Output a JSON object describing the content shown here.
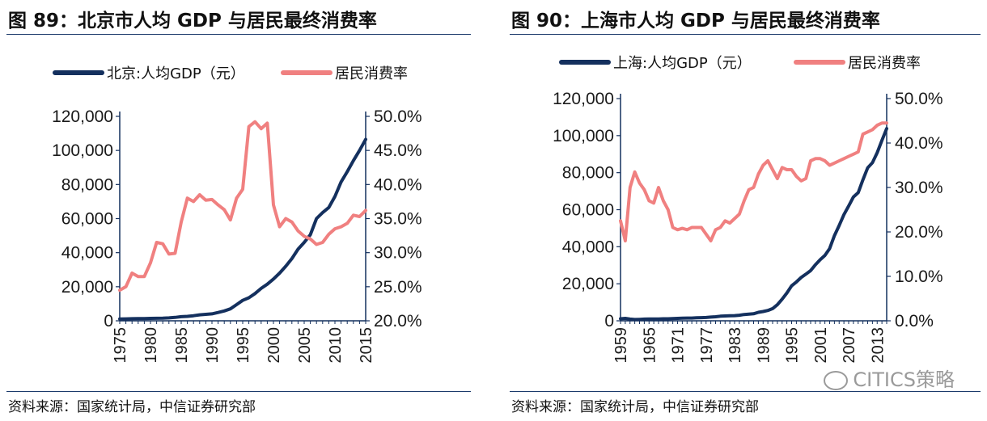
{
  "watermark": {
    "text": "CITICS策略",
    "icon": "wechat-icon"
  },
  "charts": [
    {
      "id": "left",
      "title": "图 89：北京市人均 GDP 与居民最终消费率",
      "source": "资料来源：国家统计局，中信证券研究部",
      "colors": {
        "gdp": "#14305e",
        "rate": "#f08080"
      }
    },
    {
      "id": "right",
      "title": "图 90：上海市人均 GDP 与居民最终消费率",
      "source": "资料来源：国家统计局，中信证券研究部",
      "colors": {
        "gdp": "#14305e",
        "rate": "#f08080"
      }
    }
  ],
  "chart_data": [
    {
      "type": "line",
      "title": "图 89：北京市人均 GDP 与居民最终消费率",
      "legend": [
        "北京:人均GDP（元）",
        "居民消费率"
      ],
      "legend_placement": "top",
      "x": [
        1975,
        1976,
        1977,
        1978,
        1979,
        1980,
        1981,
        1982,
        1983,
        1984,
        1985,
        1986,
        1987,
        1988,
        1989,
        1990,
        1991,
        1992,
        1993,
        1994,
        1995,
        1996,
        1997,
        1998,
        1999,
        2000,
        2001,
        2002,
        2003,
        2004,
        2005,
        2006,
        2007,
        2008,
        2009,
        2010,
        2011,
        2012,
        2013,
        2014,
        2015
      ],
      "x_tick_labels": [
        "1975",
        "1980",
        "1985",
        "1990",
        "1995",
        "2000",
        "2005",
        "2010",
        "2015"
      ],
      "y_left": {
        "ylim": [
          0,
          120000
        ],
        "ticks": [
          "0",
          "20,000",
          "40,000",
          "60,000",
          "80,000",
          "100,000",
          "120,000"
        ]
      },
      "y_right": {
        "ylim": [
          20,
          50
        ],
        "ticks": [
          "20.0%",
          "25.0%",
          "30.0%",
          "35.0%",
          "40.0%",
          "45.0%",
          "50.0%"
        ]
      },
      "grid": false,
      "series": [
        {
          "name": "北京:人均GDP（元）",
          "axis": "left",
          "values": [
            1100,
            1150,
            1250,
            1300,
            1350,
            1400,
            1450,
            1500,
            1700,
            2000,
            2400,
            2600,
            3000,
            3500,
            3800,
            4100,
            4900,
            5800,
            7000,
            9500,
            12000,
            13500,
            16000,
            19000,
            21500,
            24500,
            28000,
            32000,
            36500,
            42000,
            46000,
            50500,
            60000,
            63500,
            66500,
            73000,
            81500,
            87500,
            94000,
            100000,
            106500
          ]
        },
        {
          "name": "居民消费率",
          "axis": "right",
          "values": [
            24.5,
            25.0,
            27.0,
            26.5,
            26.5,
            28.5,
            31.5,
            31.3,
            29.8,
            29.9,
            34.5,
            38.0,
            37.5,
            38.5,
            37.7,
            37.8,
            37.0,
            36.3,
            34.8,
            38.0,
            39.3,
            48.5,
            49.2,
            48.2,
            49.0,
            37.0,
            33.8,
            35.0,
            34.5,
            33.2,
            32.4,
            32.0,
            31.2,
            31.5,
            32.7,
            33.5,
            33.8,
            34.3,
            35.5,
            35.3,
            36.2
          ]
        }
      ]
    },
    {
      "type": "line",
      "title": "图 90：上海市人均 GDP 与居民最终消费率",
      "legend": [
        "上海:人均GDP（元）",
        "居民消费率"
      ],
      "legend_placement": "top",
      "x": [
        1959,
        1960,
        1961,
        1962,
        1963,
        1964,
        1965,
        1966,
        1967,
        1968,
        1969,
        1970,
        1971,
        1972,
        1973,
        1974,
        1975,
        1976,
        1977,
        1978,
        1979,
        1980,
        1981,
        1982,
        1983,
        1984,
        1985,
        1986,
        1987,
        1988,
        1989,
        1990,
        1991,
        1992,
        1993,
        1994,
        1995,
        1996,
        1997,
        1998,
        1999,
        2000,
        2001,
        2002,
        2003,
        2004,
        2005,
        2006,
        2007,
        2008,
        2009,
        2010,
        2011,
        2012,
        2013,
        2014,
        2015
      ],
      "x_tick_labels": [
        "1959",
        "1965",
        "1971",
        "1977",
        "1983",
        "1989",
        "1995",
        "2001",
        "2007",
        "2013"
      ],
      "y_left": {
        "ylim": [
          0,
          120000
        ],
        "ticks": [
          "0",
          "20,000",
          "40,000",
          "60,000",
          "80,000",
          "100,000",
          "120,000"
        ]
      },
      "y_right": {
        "ylim": [
          0,
          50
        ],
        "ticks": [
          "0.0%",
          "10.0%",
          "20.0%",
          "30.0%",
          "40.0%",
          "50.0%"
        ]
      },
      "grid": false,
      "series": [
        {
          "name": "上海:人均GDP（元）",
          "axis": "left",
          "values": [
            1100,
            1300,
            900,
            700,
            800,
            900,
            1000,
            1000,
            1000,
            1100,
            1100,
            1200,
            1300,
            1400,
            1500,
            1500,
            1600,
            1700,
            1800,
            2000,
            2200,
            2500,
            2600,
            2700,
            2800,
            3000,
            3400,
            3600,
            3800,
            4600,
            5000,
            5600,
            6600,
            8700,
            11700,
            15000,
            18900,
            21000,
            23400,
            25200,
            27100,
            30300,
            33000,
            35300,
            39000,
            46000,
            51500,
            57300,
            62000,
            66900,
            69200,
            76100,
            82600,
            85400,
            90800,
            97400,
            103800
          ]
        },
        {
          "name": "居民消费率",
          "axis": "right",
          "values": [
            22.5,
            18.0,
            30.0,
            33.5,
            31.0,
            29.5,
            27.0,
            26.5,
            30.0,
            27.0,
            25.0,
            21.0,
            20.5,
            20.8,
            20.5,
            21.0,
            21.0,
            21.0,
            19.5,
            18.0,
            20.5,
            21.0,
            22.5,
            22.0,
            23.0,
            24.0,
            27.0,
            29.5,
            30.0,
            33.0,
            35.0,
            36.0,
            34.0,
            32.0,
            34.5,
            34.0,
            34.0,
            32.5,
            31.5,
            32.0,
            36.0,
            36.5,
            36.5,
            36.0,
            35.0,
            35.5,
            36.0,
            36.5,
            37.0,
            37.5,
            38.0,
            42.0,
            42.5,
            43.0,
            44.0,
            44.5,
            44.5
          ]
        }
      ]
    }
  ]
}
